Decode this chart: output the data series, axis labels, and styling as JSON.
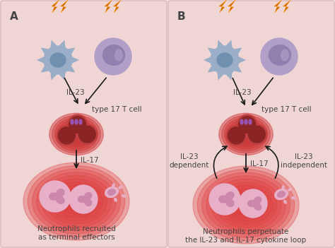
{
  "bg_color": "#f5e0e0",
  "panel_bg_A": "#f2d8d8",
  "panel_bg_B": "#f2d8d8",
  "cell_dendritic_color": "#9aaec8",
  "cell_dendritic_nucleus": "#7090b0",
  "cell_lymphocyte_color": "#b0a0c8",
  "cell_lymphocyte_nucleus": "#9080b0",
  "cell_type17_color": "#8b2525",
  "cell_type17_ring": "#c04040",
  "cell_type17_glow": "#cc3333",
  "receptor_color": "#9955bb",
  "neutrophil_color": "#e8b0c8",
  "neutrophil_nucleus": "#cc88aa",
  "arrow_color": "#1a1a1a",
  "lightning_color": "#cc6600",
  "text_color": "#444444",
  "label_A": "A",
  "label_B": "B",
  "label_IL23_A": "IL-23",
  "label_IL17_A": "IL-17",
  "label_type17_A": "type 17 T cell",
  "label_neutro_A": "Neutrophils recruited\nas terminal effectors",
  "label_IL23_B": "IL-23",
  "label_IL17_B": "IL-17",
  "label_type17_B": "type 17 T cell",
  "label_dep": "IL-23\ndependent",
  "label_indep": "IL-23\nindependent",
  "label_neutro_B": "Neutrophils perpetuate\nthe IL-23 and IL-17 cytokine loop"
}
